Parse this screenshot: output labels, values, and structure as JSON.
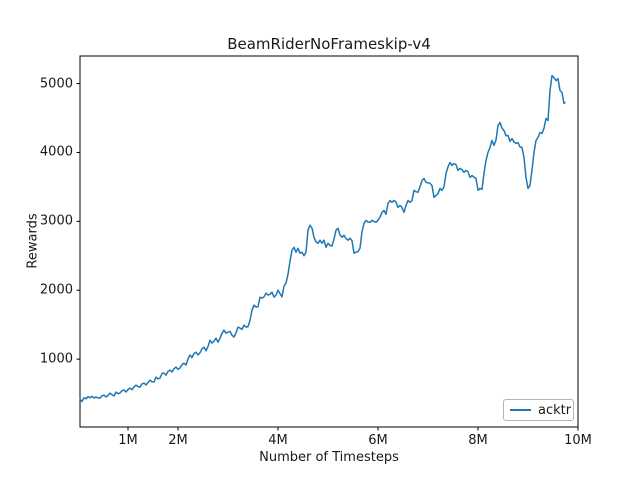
{
  "chart_data": {
    "type": "line",
    "title": "BeamRiderNoFrameskip-v4",
    "xlabel": "Number of Timesteps",
    "ylabel": "Rewards",
    "x_unit": "millions of timesteps",
    "xlim": [
      0.04,
      10.0
    ],
    "ylim": [
      15,
      5400
    ],
    "grid": false,
    "legend_position": "lower right",
    "line_color": "#1f77b4",
    "xticks": [
      {
        "value": 1,
        "label": "1M"
      },
      {
        "value": 2,
        "label": "2M"
      },
      {
        "value": 4,
        "label": "4M"
      },
      {
        "value": 6,
        "label": "6M"
      },
      {
        "value": 8,
        "label": "8M"
      },
      {
        "value": 10,
        "label": "10M"
      }
    ],
    "yticks": [
      {
        "value": 1000,
        "label": "1000"
      },
      {
        "value": 2000,
        "label": "2000"
      },
      {
        "value": 3000,
        "label": "3000"
      },
      {
        "value": 4000,
        "label": "4000"
      },
      {
        "value": 5000,
        "label": "5000"
      }
    ],
    "series": [
      {
        "name": "acktr",
        "color": "#1f77b4",
        "points": [
          [
            0.04,
            420
          ],
          [
            0.08,
            385
          ],
          [
            0.12,
            440
          ],
          [
            0.16,
            425
          ],
          [
            0.2,
            455
          ],
          [
            0.24,
            440
          ],
          [
            0.28,
            460
          ],
          [
            0.32,
            435
          ],
          [
            0.36,
            452
          ],
          [
            0.4,
            438
          ],
          [
            0.44,
            435
          ],
          [
            0.48,
            468
          ],
          [
            0.52,
            478
          ],
          [
            0.56,
            450
          ],
          [
            0.6,
            472
          ],
          [
            0.64,
            507
          ],
          [
            0.68,
            482
          ],
          [
            0.72,
            466
          ],
          [
            0.76,
            522
          ],
          [
            0.8,
            498
          ],
          [
            0.84,
            508
          ],
          [
            0.88,
            540
          ],
          [
            0.92,
            552
          ],
          [
            0.96,
            523
          ],
          [
            1.0,
            560
          ],
          [
            1.04,
            580
          ],
          [
            1.08,
            556
          ],
          [
            1.12,
            596
          ],
          [
            1.16,
            623
          ],
          [
            1.2,
            601
          ],
          [
            1.24,
            594
          ],
          [
            1.28,
            641
          ],
          [
            1.32,
            652
          ],
          [
            1.36,
            624
          ],
          [
            1.4,
            662
          ],
          [
            1.44,
            696
          ],
          [
            1.48,
            671
          ],
          [
            1.52,
            668
          ],
          [
            1.56,
            739
          ],
          [
            1.6,
            711
          ],
          [
            1.64,
            725
          ],
          [
            1.68,
            791
          ],
          [
            1.72,
            797
          ],
          [
            1.76,
            769
          ],
          [
            1.8,
            822
          ],
          [
            1.84,
            841
          ],
          [
            1.88,
            813
          ],
          [
            1.92,
            861
          ],
          [
            1.96,
            884
          ],
          [
            2.0,
            851
          ],
          [
            2.04,
            871
          ],
          [
            2.08,
            921
          ],
          [
            2.12,
            942
          ],
          [
            2.16,
            913
          ],
          [
            2.2,
            1002
          ],
          [
            2.24,
            1061
          ],
          [
            2.28,
            1021
          ],
          [
            2.32,
            1082
          ],
          [
            2.36,
            1101
          ],
          [
            2.4,
            1062
          ],
          [
            2.44,
            1092
          ],
          [
            2.48,
            1152
          ],
          [
            2.52,
            1174
          ],
          [
            2.56,
            1121
          ],
          [
            2.6,
            1183
          ],
          [
            2.64,
            1275
          ],
          [
            2.68,
            1233
          ],
          [
            2.72,
            1262
          ],
          [
            2.76,
            1304
          ],
          [
            2.8,
            1247
          ],
          [
            2.84,
            1302
          ],
          [
            2.88,
            1377
          ],
          [
            2.92,
            1420
          ],
          [
            2.96,
            1378
          ],
          [
            3.0,
            1391
          ],
          [
            3.04,
            1402
          ],
          [
            3.08,
            1349
          ],
          [
            3.12,
            1320
          ],
          [
            3.16,
            1382
          ],
          [
            3.2,
            1464
          ],
          [
            3.24,
            1450
          ],
          [
            3.28,
            1431
          ],
          [
            3.32,
            1493
          ],
          [
            3.36,
            1465
          ],
          [
            3.4,
            1472
          ],
          [
            3.44,
            1562
          ],
          [
            3.48,
            1710
          ],
          [
            3.52,
            1783
          ],
          [
            3.56,
            1755
          ],
          [
            3.6,
            1762
          ],
          [
            3.64,
            1899
          ],
          [
            3.68,
            1885
          ],
          [
            3.72,
            1906
          ],
          [
            3.76,
            1957
          ],
          [
            3.8,
            1929
          ],
          [
            3.84,
            1941
          ],
          [
            3.88,
            1971
          ],
          [
            3.92,
            1900
          ],
          [
            3.96,
            1929
          ],
          [
            4.0,
            2001
          ],
          [
            4.04,
            1952
          ],
          [
            4.08,
            1903
          ],
          [
            4.12,
            2062
          ],
          [
            4.16,
            2103
          ],
          [
            4.2,
            2231
          ],
          [
            4.24,
            2421
          ],
          [
            4.28,
            2581
          ],
          [
            4.32,
            2623
          ],
          [
            4.36,
            2552
          ],
          [
            4.4,
            2609
          ],
          [
            4.44,
            2537
          ],
          [
            4.48,
            2552
          ],
          [
            4.52,
            2501
          ],
          [
            4.56,
            2553
          ],
          [
            4.6,
            2871
          ],
          [
            4.64,
            2942
          ],
          [
            4.68,
            2901
          ],
          [
            4.72,
            2769
          ],
          [
            4.76,
            2702
          ],
          [
            4.8,
            2682
          ],
          [
            4.84,
            2726
          ],
          [
            4.88,
            2683
          ],
          [
            4.92,
            2727
          ],
          [
            4.96,
            2624
          ],
          [
            5.0,
            2682
          ],
          [
            5.04,
            2653
          ],
          [
            5.08,
            2641
          ],
          [
            5.12,
            2742
          ],
          [
            5.16,
            2871
          ],
          [
            5.2,
            2899
          ],
          [
            5.24,
            2802
          ],
          [
            5.28,
            2769
          ],
          [
            5.32,
            2797
          ],
          [
            5.36,
            2752
          ],
          [
            5.4,
            2726
          ],
          [
            5.44,
            2754
          ],
          [
            5.48,
            2721
          ],
          [
            5.52,
            2537
          ],
          [
            5.56,
            2552
          ],
          [
            5.6,
            2561
          ],
          [
            5.64,
            2610
          ],
          [
            5.68,
            2852
          ],
          [
            5.72,
            2971
          ],
          [
            5.76,
            3014
          ],
          [
            5.8,
            2991
          ],
          [
            5.84,
            2986
          ],
          [
            5.88,
            3015
          ],
          [
            5.92,
            2996
          ],
          [
            5.96,
            2987
          ],
          [
            6.0,
            3015
          ],
          [
            6.04,
            3061
          ],
          [
            6.08,
            3130
          ],
          [
            6.12,
            3159
          ],
          [
            6.16,
            3102
          ],
          [
            6.2,
            3261
          ],
          [
            6.24,
            3302
          ],
          [
            6.28,
            3276
          ],
          [
            6.32,
            3304
          ],
          [
            6.36,
            3281
          ],
          [
            6.4,
            3204
          ],
          [
            6.44,
            3232
          ],
          [
            6.48,
            3201
          ],
          [
            6.52,
            3131
          ],
          [
            6.56,
            3231
          ],
          [
            6.6,
            3304
          ],
          [
            6.64,
            3276
          ],
          [
            6.68,
            3301
          ],
          [
            6.72,
            3449
          ],
          [
            6.76,
            3431
          ],
          [
            6.8,
            3421
          ],
          [
            6.84,
            3502
          ],
          [
            6.88,
            3594
          ],
          [
            6.92,
            3623
          ],
          [
            6.96,
            3566
          ],
          [
            7.0,
            3561
          ],
          [
            7.04,
            3551
          ],
          [
            7.08,
            3521
          ],
          [
            7.12,
            3349
          ],
          [
            7.16,
            3377
          ],
          [
            7.2,
            3402
          ],
          [
            7.24,
            3478
          ],
          [
            7.28,
            3450
          ],
          [
            7.32,
            3501
          ],
          [
            7.36,
            3695
          ],
          [
            7.4,
            3791
          ],
          [
            7.44,
            3855
          ],
          [
            7.48,
            3812
          ],
          [
            7.52,
            3840
          ],
          [
            7.56,
            3821
          ],
          [
            7.6,
            3739
          ],
          [
            7.64,
            3768
          ],
          [
            7.68,
            3751
          ],
          [
            7.72,
            3711
          ],
          [
            7.76,
            3739
          ],
          [
            7.8,
            3721
          ],
          [
            7.84,
            3638
          ],
          [
            7.88,
            3666
          ],
          [
            7.92,
            3641
          ],
          [
            7.96,
            3623
          ],
          [
            8.0,
            3450
          ],
          [
            8.04,
            3478
          ],
          [
            8.08,
            3462
          ],
          [
            8.12,
            3701
          ],
          [
            8.16,
            3884
          ],
          [
            8.2,
            4001
          ],
          [
            8.24,
            4072
          ],
          [
            8.28,
            4174
          ],
          [
            8.32,
            4102
          ],
          [
            8.36,
            4181
          ],
          [
            8.4,
            4391
          ],
          [
            8.44,
            4435
          ],
          [
            8.48,
            4352
          ],
          [
            8.52,
            4319
          ],
          [
            8.56,
            4241
          ],
          [
            8.6,
            4246
          ],
          [
            8.64,
            4161
          ],
          [
            8.68,
            4203
          ],
          [
            8.72,
            4152
          ],
          [
            8.76,
            4131
          ],
          [
            8.8,
            4145
          ],
          [
            8.84,
            4081
          ],
          [
            8.88,
            4072
          ],
          [
            8.92,
            3927
          ],
          [
            8.96,
            3638
          ],
          [
            9.0,
            3478
          ],
          [
            9.04,
            3522
          ],
          [
            9.08,
            3742
          ],
          [
            9.12,
            4001
          ],
          [
            9.16,
            4174
          ],
          [
            9.2,
            4217
          ],
          [
            9.24,
            4290
          ],
          [
            9.28,
            4275
          ],
          [
            9.32,
            4352
          ],
          [
            9.36,
            4493
          ],
          [
            9.4,
            4464
          ],
          [
            9.44,
            4899
          ],
          [
            9.48,
            5116
          ],
          [
            9.52,
            5087
          ],
          [
            9.56,
            5043
          ],
          [
            9.6,
            5072
          ],
          [
            9.64,
            4899
          ],
          [
            9.68,
            4870
          ],
          [
            9.72,
            4710
          ],
          [
            9.74,
            4725
          ]
        ]
      }
    ]
  }
}
